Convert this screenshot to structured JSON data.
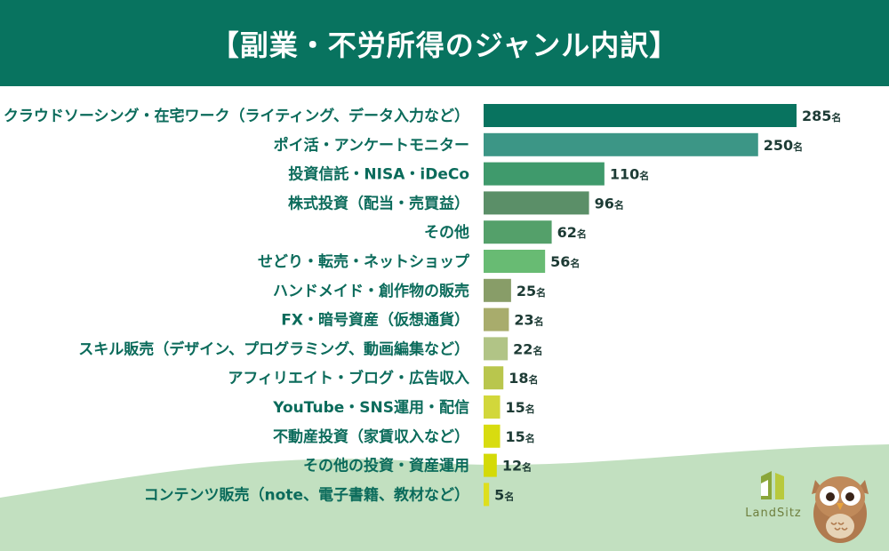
{
  "header": {
    "title": "【副業・不労所得のジャンル内訳】"
  },
  "chart_data": {
    "type": "bar",
    "orientation": "horizontal",
    "title": "【副業・不労所得のジャンル内訳】",
    "unit": "名",
    "categories": [
      "クラウドソーシング・在宅ワーク（ライティング、データ入力など）",
      "ポイ活・アンケートモニター",
      "投資信託・NISA・iDeCo",
      "株式投資（配当・売買益）",
      "その他",
      "せどり・転売・ネットショップ",
      "ハンドメイド・創作物の販売",
      "FX・暗号資産（仮想通貨）",
      "スキル販売（デザイン、プログラミング、動画編集など）",
      "アフィリエイト・ブログ・広告収入",
      "YouTube・SNS運用・配信",
      "不動産投資（家賃収入など）",
      "その他の投資・資産運用",
      "コンテンツ販売（note、電子書籍、教材など）"
    ],
    "values": [
      285,
      250,
      110,
      96,
      62,
      56,
      25,
      23,
      22,
      18,
      15,
      15,
      12,
      5
    ],
    "value_labels": [
      "285",
      "250",
      "110",
      "96",
      "62",
      "56",
      "25",
      "23",
      "22",
      "18",
      "15",
      "15",
      "12",
      "5"
    ],
    "colors": [
      "#08735f",
      "#3c9686",
      "#3f9a6c",
      "#5b8f68",
      "#54a06a",
      "#68bb73",
      "#889d68",
      "#a8ac6c",
      "#b1c486",
      "#b9c64d",
      "#d2d73b",
      "#d8dc10",
      "#d4da07",
      "#dedf1e"
    ],
    "grid": false,
    "legend": "none"
  },
  "branding": {
    "logo_text": "LandSitz",
    "logo_color": "#8aa63a",
    "owl_color": "#b07a4e"
  },
  "theme": {
    "header_bg": "#08735f",
    "wave_color": "#c2e0c0"
  }
}
